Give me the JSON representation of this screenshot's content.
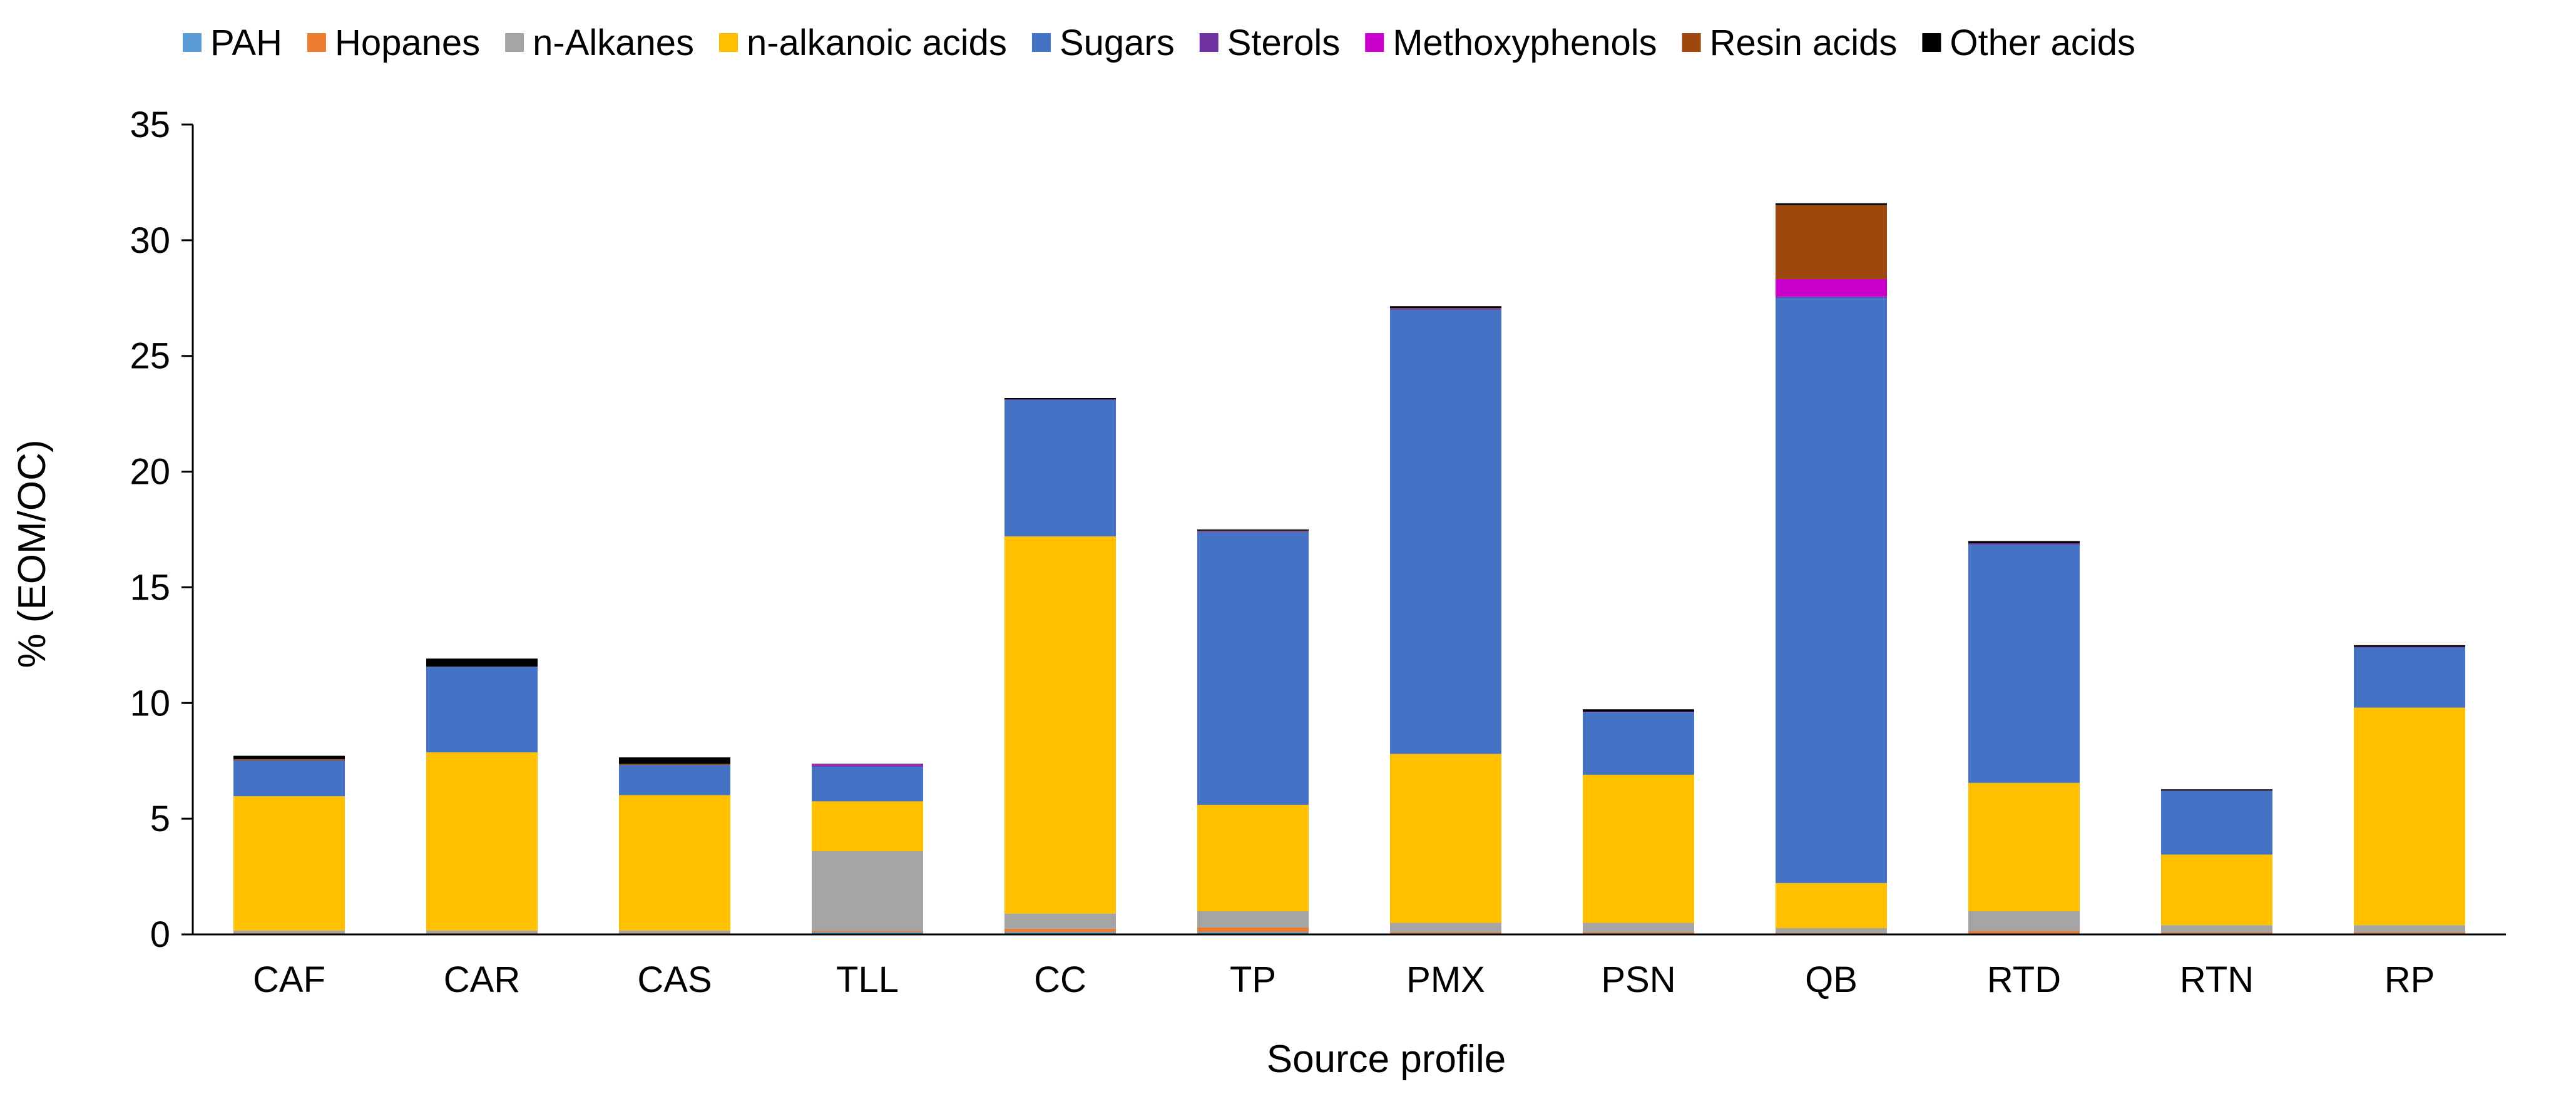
{
  "chart_data": {
    "type": "bar",
    "stacked": true,
    "title": "",
    "xlabel": "Source profile",
    "ylabel": "% (EOM/OC)",
    "ylim": [
      0,
      35
    ],
    "yticks": [
      0,
      5,
      10,
      15,
      20,
      25,
      30,
      35
    ],
    "grid": false,
    "legend_position": "top",
    "categories": [
      "CAF",
      "CAR",
      "CAS",
      "TLL",
      "CC",
      "TP",
      "PMX",
      "PSN",
      "QB",
      "RTD",
      "RTN",
      "RP"
    ],
    "series": [
      {
        "name": "PAH",
        "color": "#5B9BD5",
        "values": [
          0.05,
          0.05,
          0.05,
          0.1,
          0.1,
          0.1,
          0.05,
          0.05,
          0.05,
          0.05,
          0.05,
          0.05
        ]
      },
      {
        "name": "Hopanes",
        "color": "#ED7D31",
        "values": [
          0.02,
          0.02,
          0.02,
          0.05,
          0.15,
          0.2,
          0.05,
          0.05,
          0.02,
          0.1,
          0.05,
          0.05
        ]
      },
      {
        "name": "n-Alkanes",
        "color": "#A5A5A5",
        "values": [
          0.1,
          0.1,
          0.1,
          3.45,
          0.65,
          0.7,
          0.4,
          0.4,
          0.2,
          0.85,
          0.3,
          0.3
        ]
      },
      {
        "name": "n-alkanoic acids",
        "color": "#FFC000",
        "values": [
          5.8,
          7.7,
          5.85,
          2.15,
          16.3,
          4.6,
          7.3,
          6.4,
          1.95,
          5.55,
          3.05,
          9.4
        ]
      },
      {
        "name": "Sugars",
        "color": "#4472C4",
        "values": [
          1.55,
          3.7,
          1.3,
          1.5,
          5.9,
          11.8,
          19.2,
          2.7,
          25.3,
          10.3,
          2.75,
          2.6
        ]
      },
      {
        "name": "Sterols",
        "color": "#7030A0",
        "values": [
          0.0,
          0.0,
          0.0,
          0.05,
          0.02,
          0.03,
          0.05,
          0.03,
          0.05,
          0.05,
          0.02,
          0.03
        ]
      },
      {
        "name": "Methoxyphenols",
        "color": "#CC00CC",
        "values": [
          0.0,
          0.0,
          0.0,
          0.05,
          0.0,
          0.0,
          0.0,
          0.0,
          0.75,
          0.0,
          0.0,
          0.0
        ]
      },
      {
        "name": "Resin acids",
        "color": "#9E480E",
        "values": [
          0.05,
          0.0,
          0.05,
          0.0,
          0.0,
          0.02,
          0.02,
          0.0,
          3.2,
          0.0,
          0.0,
          0.0
        ]
      },
      {
        "name": "Other acids",
        "color": "#000000",
        "values": [
          0.15,
          0.35,
          0.28,
          0.02,
          0.06,
          0.05,
          0.08,
          0.1,
          0.08,
          0.1,
          0.05,
          0.07
        ]
      }
    ]
  }
}
